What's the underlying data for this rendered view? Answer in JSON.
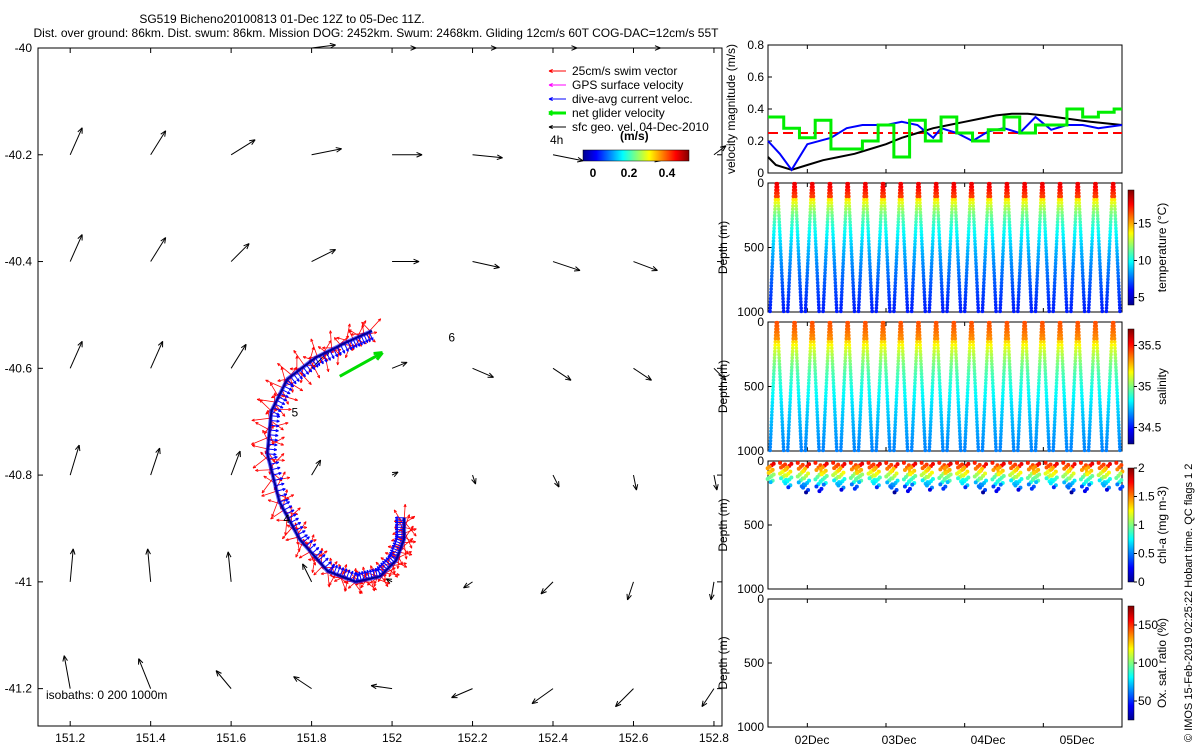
{
  "header": {
    "title_line1": "SG519 Bicheno20100813 01-Dec 12Z to 05-Dec 11Z.",
    "title_line2": "Dist. over ground: 86km. Dist. swum: 86km. Mission DOG: 2452km. Swum: 2468km. Gliding 12cm/s 60T COG-DAC=12cm/s 55T"
  },
  "map": {
    "x_ticks": [
      "151.2",
      "151.4",
      "151.6",
      "151.8",
      "152",
      "152.2",
      "152.4",
      "152.6",
      "152.8"
    ],
    "y_ticks": [
      "-40",
      "-40.2",
      "-40.4",
      "-40.6",
      "-40.8",
      "-41",
      "-41.2"
    ],
    "xlim": [
      151.12,
      152.82
    ],
    "ylim": [
      -41.27,
      -40.0
    ],
    "isobaths_label": "isobaths: 0   200  1000m",
    "legend": {
      "items": [
        {
          "label": "25cm/s swim vector",
          "color": "#ff0000"
        },
        {
          "label": "GPS surface velocity",
          "color": "#ff00ff"
        },
        {
          "label": "dive-avg current veloc.",
          "color": "#0000ff"
        },
        {
          "label": "net glider velocity",
          "color": "#00ee00"
        },
        {
          "label": "sfc geo. vel. 04-Dec-2010",
          "color": "#000000"
        }
      ],
      "duration_label": "4h",
      "units_label": "(m/s)",
      "colorbar_ticks": [
        "0",
        "0.2",
        "0.4"
      ]
    },
    "day_markers": [
      {
        "text": "6",
        "lon": 152.14,
        "lat": -40.55
      },
      {
        "text": "5",
        "lon": 151.75,
        "lat": -40.69
      },
      {
        "text": "4",
        "lon": 151.73,
        "lat": -40.89
      }
    ],
    "geo_vectors": [
      {
        "lon": 151.2,
        "lat": -40.0,
        "u": 0.0,
        "v": 0.0
      },
      {
        "lon": 151.4,
        "lat": -40.0,
        "u": 0.0,
        "v": 0.0
      },
      {
        "lon": 151.6,
        "lat": -40.0,
        "u": 0.0,
        "v": 0.0
      },
      {
        "lon": 151.8,
        "lat": -40.0,
        "u": 0.4,
        "v": 0.05
      },
      {
        "lon": 152.0,
        "lat": -40.0,
        "u": 0.4,
        "v": 0.0
      },
      {
        "lon": 152.2,
        "lat": -40.0,
        "u": 0.4,
        "v": 0.0
      },
      {
        "lon": 152.4,
        "lat": -40.0,
        "u": 0.4,
        "v": 0.0
      },
      {
        "lon": 152.6,
        "lat": -40.0,
        "u": 0.45,
        "v": 0.0
      },
      {
        "lon": 151.2,
        "lat": -40.2,
        "u": 0.2,
        "v": 0.45
      },
      {
        "lon": 151.4,
        "lat": -40.2,
        "u": 0.25,
        "v": 0.4
      },
      {
        "lon": 151.6,
        "lat": -40.2,
        "u": 0.4,
        "v": 0.25
      },
      {
        "lon": 151.8,
        "lat": -40.2,
        "u": 0.5,
        "v": 0.1
      },
      {
        "lon": 152.0,
        "lat": -40.2,
        "u": 0.5,
        "v": 0.0
      },
      {
        "lon": 152.2,
        "lat": -40.2,
        "u": 0.5,
        "v": -0.05
      },
      {
        "lon": 152.4,
        "lat": -40.2,
        "u": 0.5,
        "v": -0.1
      },
      {
        "lon": 152.6,
        "lat": -40.2,
        "u": 0.45,
        "v": -0.1
      },
      {
        "lon": 152.8,
        "lat": -40.2,
        "u": 0.2,
        "v": 0.15
      },
      {
        "lon": 151.2,
        "lat": -40.4,
        "u": 0.2,
        "v": 0.45
      },
      {
        "lon": 151.4,
        "lat": -40.4,
        "u": 0.25,
        "v": 0.4
      },
      {
        "lon": 151.6,
        "lat": -40.4,
        "u": 0.3,
        "v": 0.3
      },
      {
        "lon": 151.8,
        "lat": -40.4,
        "u": 0.4,
        "v": 0.2
      },
      {
        "lon": 152.0,
        "lat": -40.4,
        "u": 0.45,
        "v": 0.0
      },
      {
        "lon": 152.2,
        "lat": -40.4,
        "u": 0.45,
        "v": -0.1
      },
      {
        "lon": 152.4,
        "lat": -40.4,
        "u": 0.45,
        "v": -0.15
      },
      {
        "lon": 152.6,
        "lat": -40.4,
        "u": 0.4,
        "v": -0.15
      },
      {
        "lon": 151.2,
        "lat": -40.6,
        "u": 0.2,
        "v": 0.45
      },
      {
        "lon": 151.4,
        "lat": -40.6,
        "u": 0.2,
        "v": 0.45
      },
      {
        "lon": 151.6,
        "lat": -40.6,
        "u": 0.25,
        "v": 0.4
      },
      {
        "lon": 151.8,
        "lat": -40.6,
        "u": 0.3,
        "v": 0.3
      },
      {
        "lon": 152.0,
        "lat": -40.6,
        "u": 0.25,
        "v": 0.1
      },
      {
        "lon": 152.2,
        "lat": -40.6,
        "u": 0.35,
        "v": -0.15
      },
      {
        "lon": 152.4,
        "lat": -40.6,
        "u": 0.3,
        "v": -0.2
      },
      {
        "lon": 152.6,
        "lat": -40.6,
        "u": 0.3,
        "v": -0.2
      },
      {
        "lon": 152.8,
        "lat": -40.6,
        "u": 0.2,
        "v": -0.2
      },
      {
        "lon": 151.2,
        "lat": -40.8,
        "u": 0.15,
        "v": 0.5
      },
      {
        "lon": 151.4,
        "lat": -40.8,
        "u": 0.15,
        "v": 0.45
      },
      {
        "lon": 151.6,
        "lat": -40.8,
        "u": 0.15,
        "v": 0.4
      },
      {
        "lon": 151.8,
        "lat": -40.8,
        "u": 0.15,
        "v": 0.25
      },
      {
        "lon": 152.0,
        "lat": -40.8,
        "u": 0.1,
        "v": 0.05
      },
      {
        "lon": 152.2,
        "lat": -40.8,
        "u": 0.05,
        "v": -0.15
      },
      {
        "lon": 152.4,
        "lat": -40.8,
        "u": 0.1,
        "v": -0.2
      },
      {
        "lon": 152.6,
        "lat": -40.8,
        "u": 0.05,
        "v": -0.25
      },
      {
        "lon": 152.8,
        "lat": -40.8,
        "u": 0.05,
        "v": -0.25
      },
      {
        "lon": 151.2,
        "lat": -41.0,
        "u": 0.05,
        "v": 0.55
      },
      {
        "lon": 151.4,
        "lat": -41.0,
        "u": -0.05,
        "v": 0.55
      },
      {
        "lon": 151.6,
        "lat": -41.0,
        "u": -0.05,
        "v": 0.5
      },
      {
        "lon": 151.8,
        "lat": -41.0,
        "u": -0.15,
        "v": 0.3
      },
      {
        "lon": 152.0,
        "lat": -41.0,
        "u": -0.1,
        "v": 0.05
      },
      {
        "lon": 152.2,
        "lat": -41.0,
        "u": -0.15,
        "v": -0.1
      },
      {
        "lon": 152.4,
        "lat": -41.0,
        "u": -0.2,
        "v": -0.2
      },
      {
        "lon": 152.6,
        "lat": -41.0,
        "u": -0.1,
        "v": -0.3
      },
      {
        "lon": 152.8,
        "lat": -41.0,
        "u": -0.05,
        "v": -0.3
      },
      {
        "lon": 151.2,
        "lat": -41.2,
        "u": -0.1,
        "v": 0.55
      },
      {
        "lon": 151.4,
        "lat": -41.2,
        "u": -0.2,
        "v": 0.5
      },
      {
        "lon": 151.6,
        "lat": -41.2,
        "u": -0.25,
        "v": 0.3
      },
      {
        "lon": 151.8,
        "lat": -41.2,
        "u": -0.3,
        "v": 0.2
      },
      {
        "lon": 152.0,
        "lat": -41.2,
        "u": -0.35,
        "v": 0.05
      },
      {
        "lon": 152.2,
        "lat": -41.2,
        "u": -0.35,
        "v": -0.15
      },
      {
        "lon": 152.4,
        "lat": -41.2,
        "u": -0.35,
        "v": -0.25
      },
      {
        "lon": 152.6,
        "lat": -41.2,
        "u": -0.3,
        "v": -0.3
      },
      {
        "lon": 152.8,
        "lat": -41.2,
        "u": -0.2,
        "v": -0.3
      }
    ],
    "glider_track": [
      [
        152.03,
        -40.88
      ],
      [
        152.03,
        -40.92
      ],
      [
        152.01,
        -40.96
      ],
      [
        151.97,
        -40.99
      ],
      [
        151.91,
        -41.0
      ],
      [
        151.84,
        -40.98
      ],
      [
        151.77,
        -40.92
      ],
      [
        151.72,
        -40.85
      ],
      [
        151.69,
        -40.76
      ],
      [
        151.7,
        -40.68
      ],
      [
        151.74,
        -40.62
      ],
      [
        151.81,
        -40.58
      ],
      [
        151.89,
        -40.55
      ],
      [
        151.95,
        -40.53
      ]
    ],
    "net_velocity_vector": {
      "lon": 151.87,
      "lat": -40.615,
      "u": 0.45,
      "v": 0.25
    }
  },
  "panels": [
    {
      "kind": "line",
      "ylabel": "velocity magnitude (m/s)",
      "ylim": [
        0,
        0.8
      ],
      "y_ticks": [
        "0",
        "0.2",
        "0.4",
        "0.6",
        "0.8"
      ],
      "red_dashed_level": 0.25,
      "series": [
        {
          "color": "#000000",
          "x": [
            0,
            0.1,
            0.3,
            0.5,
            0.7,
            0.9,
            1.1,
            1.3,
            1.5,
            1.7,
            1.9,
            2.1,
            2.3,
            2.5,
            2.7,
            2.9,
            3.1,
            3.3,
            3.5,
            3.8,
            4.1,
            4.5
          ],
          "y": [
            0.1,
            0.05,
            0.02,
            0.05,
            0.08,
            0.1,
            0.12,
            0.15,
            0.18,
            0.22,
            0.25,
            0.28,
            0.3,
            0.32,
            0.34,
            0.36,
            0.37,
            0.37,
            0.36,
            0.34,
            0.32,
            0.3
          ]
        },
        {
          "color": "#0000ff",
          "x": [
            0,
            0.15,
            0.3,
            0.5,
            0.8,
            1.0,
            1.2,
            1.5,
            1.7,
            1.9,
            2.1,
            2.2,
            2.4,
            2.6,
            2.8,
            3.0,
            3.2,
            3.4,
            3.6,
            3.8,
            4.0,
            4.2,
            4.5
          ],
          "y": [
            0.2,
            0.12,
            0.02,
            0.18,
            0.22,
            0.28,
            0.3,
            0.3,
            0.32,
            0.3,
            0.22,
            0.28,
            0.25,
            0.2,
            0.26,
            0.28,
            0.25,
            0.35,
            0.27,
            0.3,
            0.3,
            0.28,
            0.3
          ]
        },
        {
          "color": "#00ee00",
          "x": [
            0,
            0.2,
            0.4,
            0.6,
            0.8,
            1.0,
            1.2,
            1.4,
            1.6,
            1.8,
            2.0,
            2.2,
            2.4,
            2.6,
            2.8,
            3.0,
            3.2,
            3.4,
            3.6,
            3.8,
            4.0,
            4.2,
            4.4,
            4.5
          ],
          "y": [
            0.35,
            0.28,
            0.22,
            0.33,
            0.15,
            0.15,
            0.2,
            0.3,
            0.1,
            0.33,
            0.2,
            0.35,
            0.25,
            0.2,
            0.27,
            0.35,
            0.25,
            0.3,
            0.3,
            0.4,
            0.35,
            0.38,
            0.4,
            0.4
          ]
        }
      ]
    },
    {
      "kind": "scatter",
      "field": "temperature",
      "ylabel": "Depth (m)",
      "y_ticks": [
        "0",
        "500",
        "1000"
      ],
      "colorbar_label": "temperature (°C)",
      "colorbar_ticks": [
        "5",
        "10",
        "15"
      ],
      "cmin": 4,
      "cmax": 19.5
    },
    {
      "kind": "scatter",
      "field": "salinity",
      "ylabel": "Depth (m)",
      "y_ticks": [
        "0",
        "500",
        "1000"
      ],
      "colorbar_label": "salinity",
      "colorbar_ticks": [
        "34.5",
        "35",
        "35.5"
      ],
      "cmin": 34.3,
      "cmax": 35.7
    },
    {
      "kind": "scatter",
      "field": "chl-a",
      "ylabel": "Depth (m)",
      "y_ticks": [
        "0",
        "500",
        "1000"
      ],
      "colorbar_label": "chl-a (mg m-3)",
      "colorbar_ticks": [
        "0",
        "0.5",
        "1",
        "1.5",
        "2"
      ],
      "cmin": 0,
      "cmax": 2
    },
    {
      "kind": "empty",
      "field": "oxygen",
      "ylabel": "Depth (m)",
      "y_ticks": [
        "0",
        "500",
        "1000"
      ],
      "colorbar_label": "Ox. sat. ratio (%)",
      "colorbar_ticks": [
        "50",
        "100",
        "150"
      ],
      "cmin": 25,
      "cmax": 175
    }
  ],
  "time_axis": {
    "ticks": [
      "02Dec",
      "03Dec",
      "04Dec",
      "05Dec"
    ]
  },
  "side_note": "© IMOS 15-Feb-2019 02:25:22 Hobart time. QC flags 1  2",
  "chart_data": [
    {
      "type": "scatter",
      "title": "SG519 Bicheno20100813 01-Dec 12Z to 05-Dec 11Z.",
      "xlabel": "",
      "ylabel": "",
      "xlim": [
        151.12,
        152.82
      ],
      "ylim": [
        -41.27,
        -40.0
      ],
      "series": [
        {
          "name": "sfc geo. vel. 04-Dec-2010"
        },
        {
          "name": "dive-avg current veloc."
        },
        {
          "name": "25cm/s swim vector"
        },
        {
          "name": "net glider velocity"
        }
      ]
    },
    {
      "type": "line",
      "ylabel": "velocity magnitude (m/s)",
      "ylim": [
        0,
        0.8
      ],
      "categories": [
        "02Dec",
        "03Dec",
        "04Dec",
        "05Dec"
      ]
    },
    {
      "type": "scatter",
      "ylabel": "Depth (m)",
      "ylim": [
        1000,
        0
      ],
      "colorbar": "temperature (°C)"
    },
    {
      "type": "scatter",
      "ylabel": "Depth (m)",
      "ylim": [
        1000,
        0
      ],
      "colorbar": "salinity"
    },
    {
      "type": "scatter",
      "ylabel": "Depth (m)",
      "ylim": [
        1000,
        0
      ],
      "colorbar": "chl-a (mg m-3)"
    },
    {
      "type": "scatter",
      "ylabel": "Depth (m)",
      "ylim": [
        1000,
        0
      ],
      "colorbar": "Ox. sat. ratio (%)"
    }
  ]
}
